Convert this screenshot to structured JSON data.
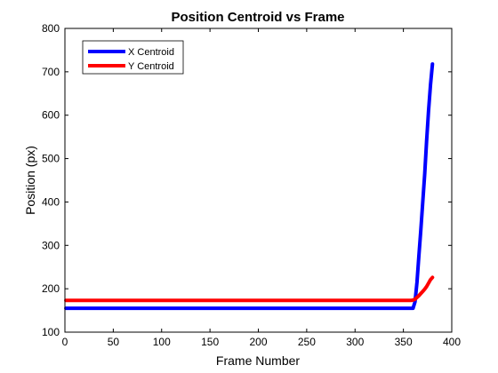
{
  "chart_data": {
    "type": "line",
    "title": "Position Centroid vs Frame",
    "xlabel": "Frame Number",
    "ylabel": "Position (px)",
    "xlim": [
      0,
      400
    ],
    "ylim": [
      100,
      800
    ],
    "xticks": [
      0,
      50,
      100,
      150,
      200,
      250,
      300,
      350,
      400
    ],
    "yticks": [
      100,
      200,
      300,
      400,
      500,
      600,
      700,
      800
    ],
    "grid": false,
    "legend_position": "top-left",
    "series": [
      {
        "name": "X Centroid",
        "color": "#0000ff",
        "x": [
          1,
          50,
          100,
          150,
          200,
          250,
          300,
          350,
          358,
          360,
          362,
          364,
          366,
          368,
          370,
          372,
          374,
          376,
          378,
          380
        ],
        "y": [
          155,
          155,
          155,
          155,
          155,
          155,
          155,
          155,
          155,
          155,
          170,
          215,
          275,
          335,
          400,
          465,
          540,
          610,
          670,
          718
        ]
      },
      {
        "name": "Y Centroid",
        "color": "#ff0000",
        "x": [
          1,
          50,
          100,
          150,
          200,
          250,
          300,
          350,
          358,
          360,
          362,
          364,
          366,
          368,
          370,
          372,
          374,
          376,
          378,
          380
        ],
        "y": [
          173,
          173,
          173,
          173,
          173,
          173,
          173,
          173,
          173,
          174,
          176,
          180,
          184,
          189,
          194,
          199,
          205,
          213,
          221,
          226
        ]
      }
    ]
  }
}
